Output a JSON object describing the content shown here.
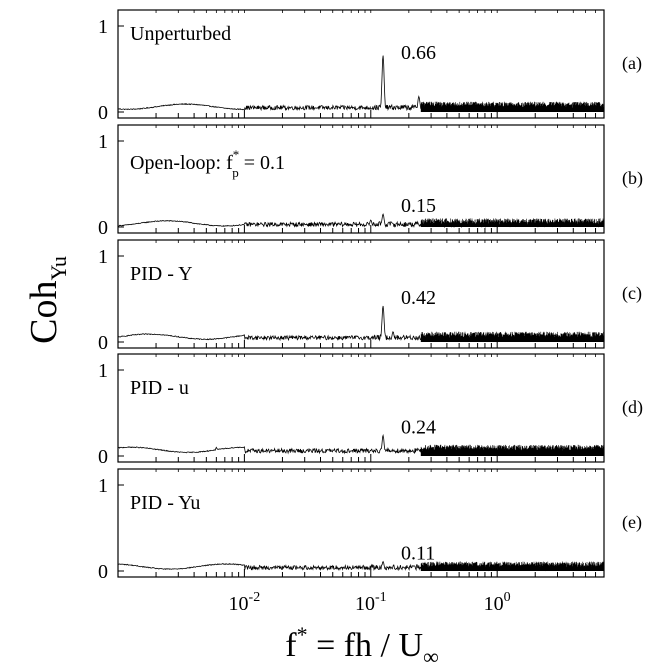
{
  "figure": {
    "ylabel_main": "Coh",
    "ylabel_sub": "Yu",
    "xlabel": "f* = fh / U∞",
    "xlabel_parts": {
      "f": "f",
      "star": "*",
      "rest": " = fh / U",
      "inf": "∞"
    },
    "xtick_labels": [
      {
        "base": "10",
        "exp": "-2",
        "value": 0.01
      },
      {
        "base": "10",
        "exp": "-1",
        "value": 0.1
      },
      {
        "base": "10",
        "exp": "0",
        "value": 1
      }
    ]
  },
  "chart_data": [
    {
      "type": "line",
      "panel": "(a)",
      "annotation": "Unperturbed",
      "peak_label": "0.66",
      "y_ticks": [
        "1",
        "0"
      ],
      "ylim": [
        0,
        1
      ],
      "xlim": [
        0.001,
        7
      ],
      "xscale": "log",
      "peaks": [
        {
          "x": 0.125,
          "y": 0.66
        },
        {
          "x": 0.24,
          "y": 0.18
        }
      ],
      "baseline": 0.04
    },
    {
      "type": "line",
      "panel": "(b)",
      "annotation": "Open-loop: f",
      "annotation_sup": "*",
      "annotation_sub": "p",
      "annotation_tail": " = 0.1",
      "peak_label": "0.15",
      "y_ticks": [
        "1",
        "0"
      ],
      "ylim": [
        0,
        1
      ],
      "xlim": [
        0.001,
        7
      ],
      "xscale": "log",
      "peaks": [
        {
          "x": 0.125,
          "y": 0.15
        },
        {
          "x": 0.1,
          "y": 0.08
        }
      ],
      "baseline": 0.02
    },
    {
      "type": "line",
      "panel": "(c)",
      "annotation": "PID - Y",
      "peak_label": "0.42",
      "y_ticks": [
        "1",
        "0"
      ],
      "ylim": [
        0,
        1
      ],
      "xlim": [
        0.001,
        7
      ],
      "xscale": "log",
      "peaks": [
        {
          "x": 0.125,
          "y": 0.42
        },
        {
          "x": 0.15,
          "y": 0.12
        }
      ],
      "baseline": 0.04
    },
    {
      "type": "line",
      "panel": "(d)",
      "annotation": "PID - u",
      "peak_label": "0.24",
      "y_ticks": [
        "1",
        "0"
      ],
      "ylim": [
        0,
        1
      ],
      "xlim": [
        0.001,
        7
      ],
      "xscale": "log",
      "peaks": [
        {
          "x": 0.125,
          "y": 0.24
        },
        {
          "x": 0.006,
          "y": 0.1
        }
      ],
      "baseline": 0.05
    },
    {
      "type": "line",
      "panel": "(e)",
      "annotation": "PID - Yu",
      "peak_label": "0.11",
      "y_ticks": [
        "1",
        "0"
      ],
      "ylim": [
        0,
        1
      ],
      "xlim": [
        0.001,
        7
      ],
      "xscale": "log",
      "peaks": [
        {
          "x": 0.125,
          "y": 0.11
        }
      ],
      "baseline": 0.03
    }
  ]
}
